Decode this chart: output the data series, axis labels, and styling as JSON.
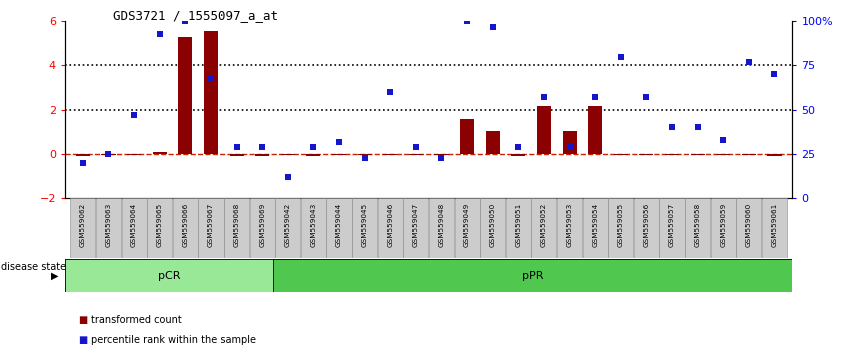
{
  "title": "GDS3721 / 1555097_a_at",
  "samples": [
    "GSM559062",
    "GSM559063",
    "GSM559064",
    "GSM559065",
    "GSM559066",
    "GSM559067",
    "GSM559068",
    "GSM559069",
    "GSM559042",
    "GSM559043",
    "GSM559044",
    "GSM559045",
    "GSM559046",
    "GSM559047",
    "GSM559048",
    "GSM559049",
    "GSM559050",
    "GSM559051",
    "GSM559052",
    "GSM559053",
    "GSM559054",
    "GSM559055",
    "GSM559056",
    "GSM559057",
    "GSM559058",
    "GSM559059",
    "GSM559060",
    "GSM559061"
  ],
  "transformed_count": [
    -0.1,
    -0.05,
    -0.05,
    0.1,
    5.3,
    5.55,
    -0.1,
    -0.1,
    -0.05,
    -0.1,
    -0.05,
    -0.05,
    -0.05,
    -0.05,
    -0.05,
    1.6,
    1.05,
    -0.1,
    2.15,
    1.05,
    2.15,
    -0.05,
    -0.05,
    -0.05,
    -0.05,
    -0.05,
    -0.05,
    -0.1
  ],
  "percentile_rank": [
    20,
    25,
    47,
    93,
    100,
    68,
    29,
    29,
    12,
    29,
    32,
    23,
    60,
    29,
    23,
    100,
    97,
    29,
    57,
    29,
    57,
    80,
    57,
    40,
    40,
    33,
    77,
    70
  ],
  "pcr_count": 8,
  "ppr_count": 20,
  "ylim_left": [
    -2,
    6
  ],
  "ylim_right": [
    0,
    100
  ],
  "yticks_left": [
    -2,
    0,
    2,
    4,
    6
  ],
  "yticks_right": [
    0,
    25,
    50,
    75,
    100
  ],
  "ytick_labels_right": [
    "0",
    "25",
    "50",
    "75",
    "100%"
  ],
  "bar_color": "#8B0000",
  "dot_color": "#1515CC",
  "dashed_line_color": "#CC2200",
  "dotted_line_color": "#000000",
  "pcr_color": "#98E898",
  "ppr_color": "#50C850",
  "pcr_label": "pCR",
  "ppr_label": "pPR",
  "disease_state_label": "disease state",
  "legend_bar_label": "transformed count",
  "legend_dot_label": "percentile rank within the sample",
  "background_color": "#ffffff",
  "tick_label_bg": "#cccccc"
}
